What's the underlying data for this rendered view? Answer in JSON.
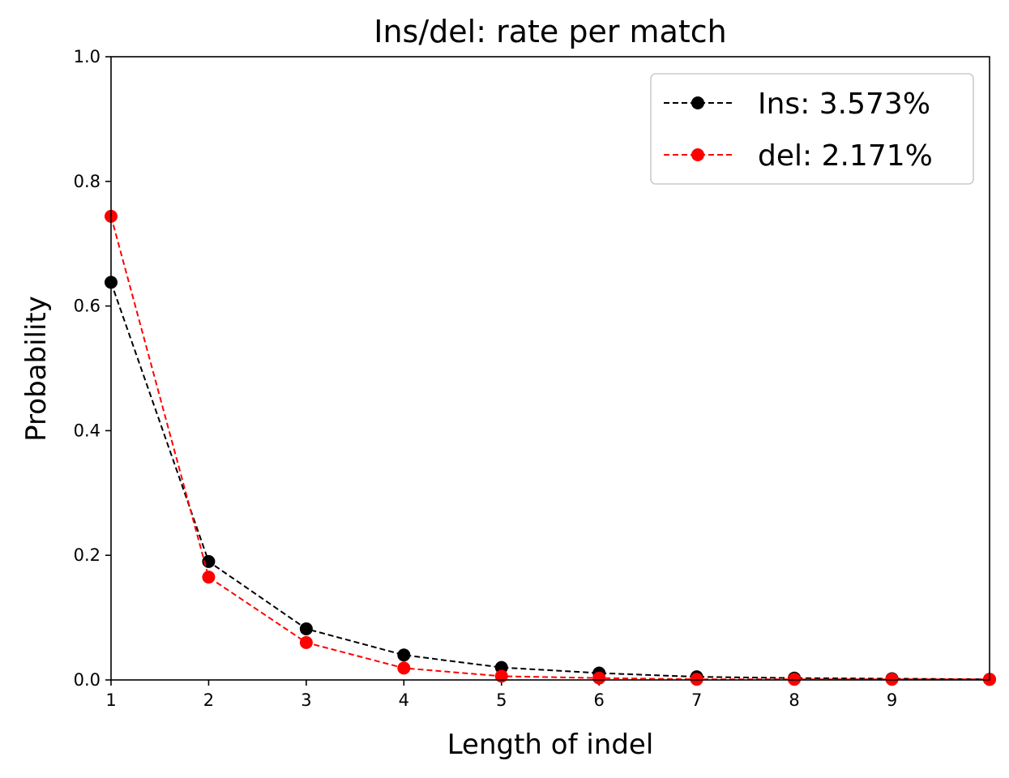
{
  "chart_data": {
    "type": "line",
    "title": "Ins/del: rate per match",
    "xlabel": "Length of indel",
    "ylabel": "Probability",
    "xlim": [
      1,
      10
    ],
    "ylim": [
      0,
      1.0
    ],
    "x_ticks": [
      1,
      2,
      3,
      4,
      5,
      6,
      7,
      8,
      9
    ],
    "y_ticks": [
      0.0,
      0.2,
      0.4,
      0.6,
      0.8,
      1.0
    ],
    "y_tick_labels": [
      "0.0",
      "0.2",
      "0.4",
      "0.6",
      "0.8",
      "1.0"
    ],
    "grid": false,
    "legend_position": "top-right",
    "x": [
      1,
      2,
      3,
      4,
      5,
      6,
      7,
      8,
      9,
      10
    ],
    "series": [
      {
        "name": "Ins: 3.573%",
        "color": "#000000",
        "line_style": "dashed",
        "marker": "circle",
        "values": [
          0.638,
          0.19,
          0.082,
          0.04,
          0.02,
          0.011,
          0.005,
          0.003,
          0.002,
          0.001
        ]
      },
      {
        "name": "del: 2.171%",
        "color": "#ff0000",
        "line_style": "dashed",
        "marker": "circle",
        "values": [
          0.744,
          0.165,
          0.06,
          0.019,
          0.006,
          0.003,
          0.001,
          0.001,
          0.001,
          0.001
        ]
      }
    ]
  }
}
